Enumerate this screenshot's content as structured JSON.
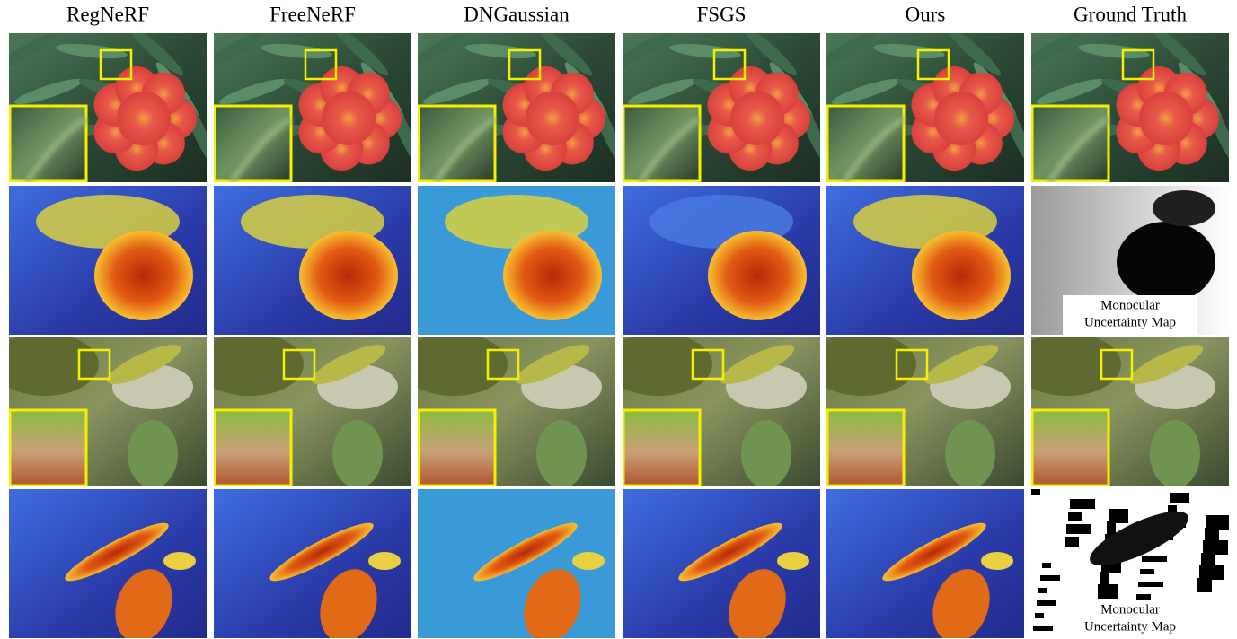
{
  "columns": [
    "RegNeRF",
    "FreeNeRF",
    "DNGaussian",
    "FSGS",
    "Ours",
    "Ground Truth"
  ],
  "uncertainty_labels": [
    [
      "Monocular",
      "Uncertainty Map"
    ],
    [
      "Monocular",
      "Uncertainty Map"
    ]
  ]
}
